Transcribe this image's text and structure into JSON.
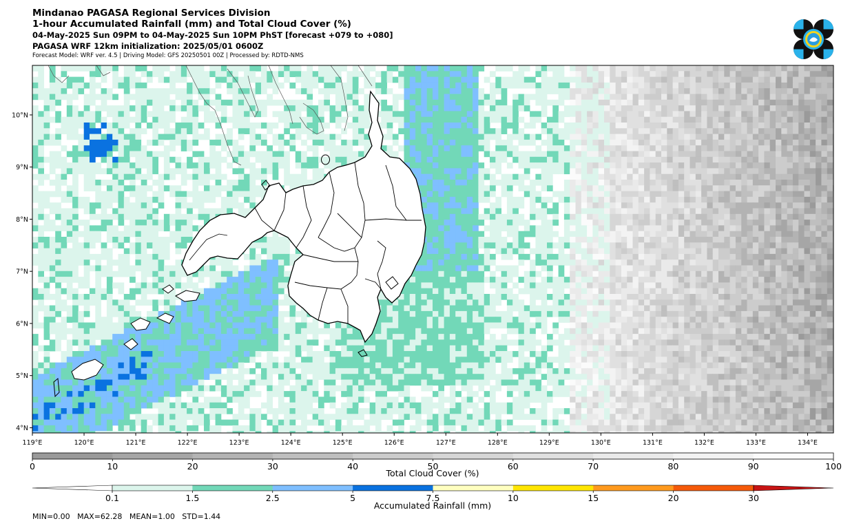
{
  "header": {
    "line1": "Mindanao PAGASA Regional Services Division",
    "line2": "1-hour Accumulated Rainfall (mm) and Total Cloud Cover (%)",
    "line3": "04-May-2025 Sun 09PM to 04-May-2025 Sun 10PM PhST [forecast +079 to +080]",
    "line4": "PAGASA WRF 12km initialization: 2025/05/01 0600Z",
    "line5": "Forecast Model: WRF ver. 4.5 | Driving Model: GFS 20250501 00Z | Processed by: RDTD-NMS"
  },
  "map": {
    "lon_range": [
      119,
      134.5
    ],
    "lat_range": [
      3.9,
      10.95
    ],
    "lon_ticks": [
      "119°E",
      "120°E",
      "121°E",
      "122°E",
      "123°E",
      "124°E",
      "125°E",
      "126°E",
      "127°E",
      "128°E",
      "129°E",
      "130°E",
      "131°E",
      "132°E",
      "133°E",
      "134°E"
    ],
    "lat_ticks": [
      "4°N",
      "5°N",
      "6°N",
      "7°N",
      "8°N",
      "9°N",
      "10°N"
    ]
  },
  "cloud_colorbar": {
    "label": "Total Cloud Cover (%)",
    "ticks": [
      "0",
      "10",
      "20",
      "30",
      "40",
      "50",
      "60",
      "70",
      "80",
      "90",
      "100"
    ],
    "colors": [
      "#9a9a9a",
      "#a6a6a6",
      "#b3b3b3",
      "#bfbfbf",
      "#cccccc",
      "#d6d6d6",
      "#e0e0e0",
      "#eaeaea",
      "#f3f3f3",
      "#fbfbfb"
    ]
  },
  "rain_colorbar": {
    "label": "Accumulated Rainfall (mm)",
    "ticks": [
      "0.1",
      "1.5",
      "2.5",
      "5",
      "7.5",
      "10",
      "15",
      "20",
      "30"
    ],
    "colors": [
      "#dcf5ec",
      "#72d8b8",
      "#7fbfff",
      "#0a72e0",
      "#ffffc0",
      "#ffe600",
      "#ff9a1e",
      "#f55a0a",
      "#c81414"
    ],
    "under_color": "#ffffff"
  },
  "stats": {
    "text": "MIN=0.00   MAX=62.28   MEAN=1.00   STD=1.44"
  },
  "logo": {
    "name": "pagasa-logo"
  }
}
